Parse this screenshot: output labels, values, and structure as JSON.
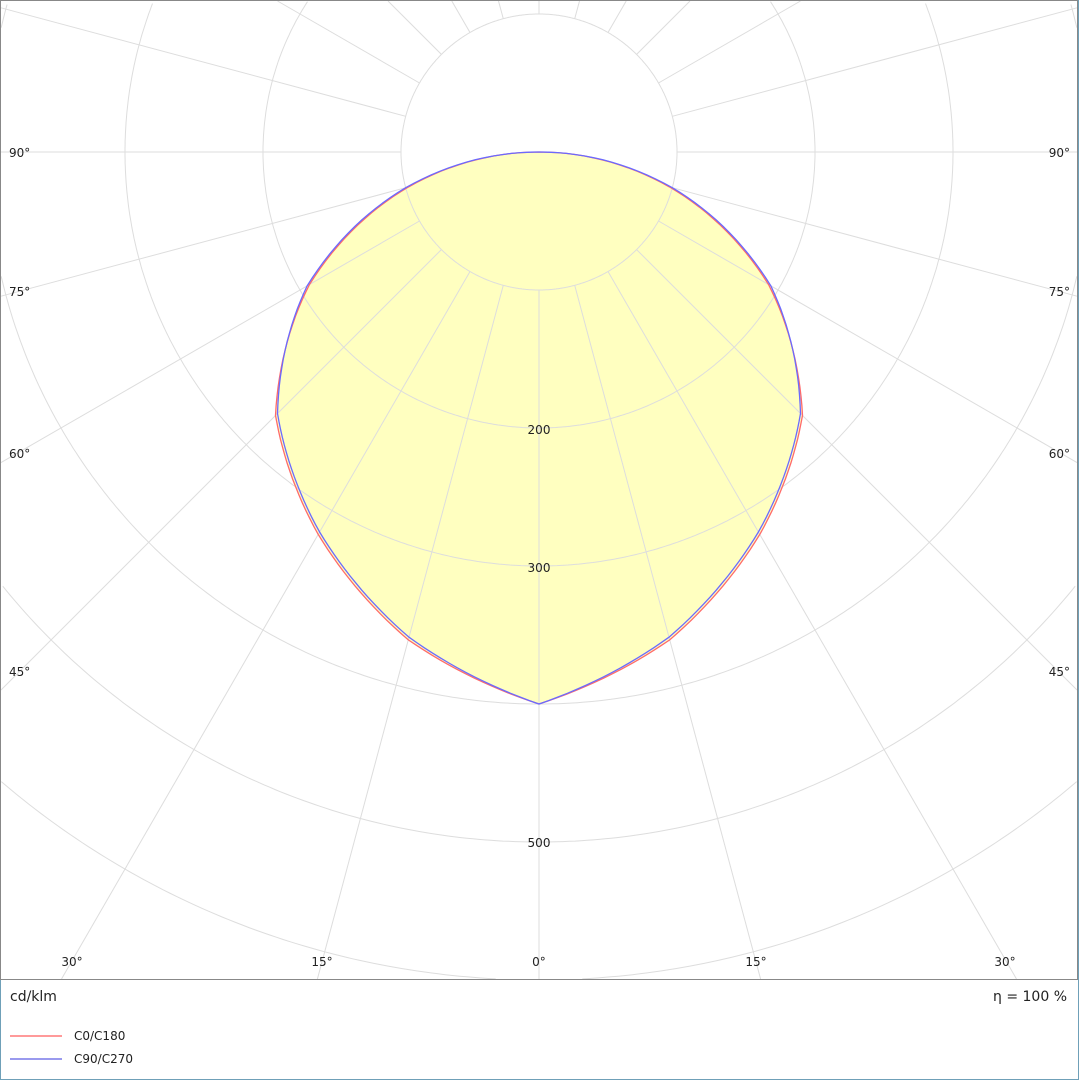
{
  "chart_data": {
    "type": "polar",
    "unit_label": "cd/klm",
    "efficiency_label": "η = 100 %",
    "radial_ticks": [
      100,
      200,
      300,
      400,
      500,
      600
    ],
    "radial_tick_labels": [
      "200",
      "300",
      "500"
    ],
    "angle_labels_side": [
      "90°",
      "75°",
      "60°",
      "45°"
    ],
    "angle_labels_bottom": [
      "30°",
      "15°",
      "0°",
      "15°",
      "30°"
    ],
    "angles_deg": [
      0,
      15,
      30,
      45,
      60,
      75,
      90
    ],
    "series": [
      {
        "name": "C0/C180",
        "color": "#ff6a6a",
        "values": [
          400,
          366,
          320,
          270,
          192,
          98,
          0
        ]
      },
      {
        "name": "C90/C270",
        "color": "#6a6aff",
        "values": [
          400,
          364,
          318,
          268,
          194,
          100,
          0
        ]
      }
    ],
    "fill_color": "#ffffc0",
    "grid": true
  }
}
